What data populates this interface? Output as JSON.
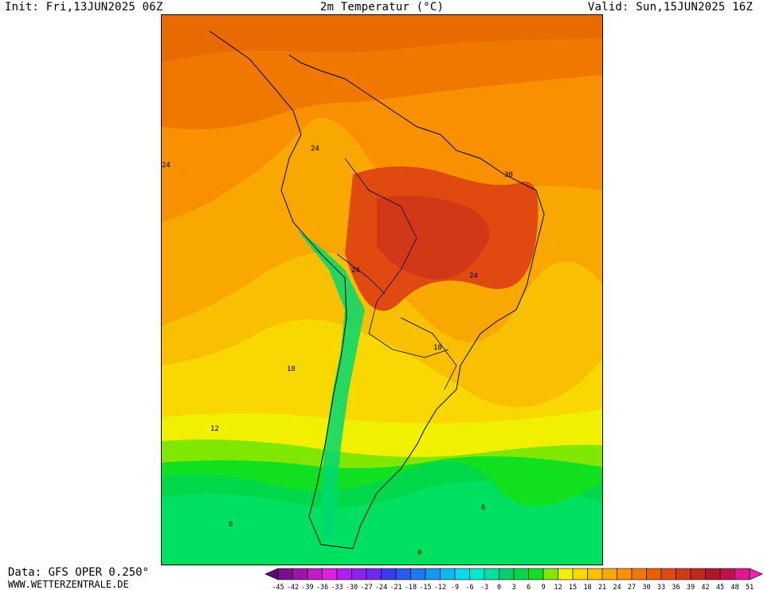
{
  "header": {
    "init": "Init: Fri,13JUN2025 06Z",
    "title": "2m Temperatur (°C)",
    "valid": "Valid: Sun,15JUN2025 16Z"
  },
  "footer": {
    "data_source": "Data: GFS OPER 0.250°",
    "website": "WWW.WETTERZENTRALE.DE"
  },
  "map": {
    "contour_labels": [
      "24",
      "24",
      "30",
      "24",
      "24",
      "18",
      "18",
      "12",
      "6",
      "6",
      "0"
    ]
  },
  "legend": {
    "ticks": [
      "-45",
      "-42",
      "-39",
      "-36",
      "-33",
      "-30",
      "-27",
      "-24",
      "-21",
      "-18",
      "-15",
      "-12",
      "-9",
      "-6",
      "-3",
      "0",
      "3",
      "6",
      "9",
      "12",
      "15",
      "18",
      "21",
      "24",
      "27",
      "30",
      "33",
      "36",
      "39",
      "42",
      "45",
      "48",
      "51"
    ],
    "colors": [
      "#5b0a6e",
      "#7a0f8c",
      "#9a16a8",
      "#c01cc4",
      "#e020e0",
      "#b01ef0",
      "#8a22f2",
      "#6a2cf0",
      "#3a3cf0",
      "#2a5af0",
      "#1e78f0",
      "#1898f0",
      "#10b8f0",
      "#08d8f0",
      "#00e8d0",
      "#00e0a0",
      "#00d070",
      "#00d84a",
      "#10e020",
      "#80e800",
      "#f0f000",
      "#f8d800",
      "#f8c000",
      "#f8a800",
      "#f89000",
      "#f07800",
      "#e86000",
      "#e04a10",
      "#d03818",
      "#c02820",
      "#b01828",
      "#c0104a",
      "#e01890",
      "#f020b0"
    ]
  }
}
